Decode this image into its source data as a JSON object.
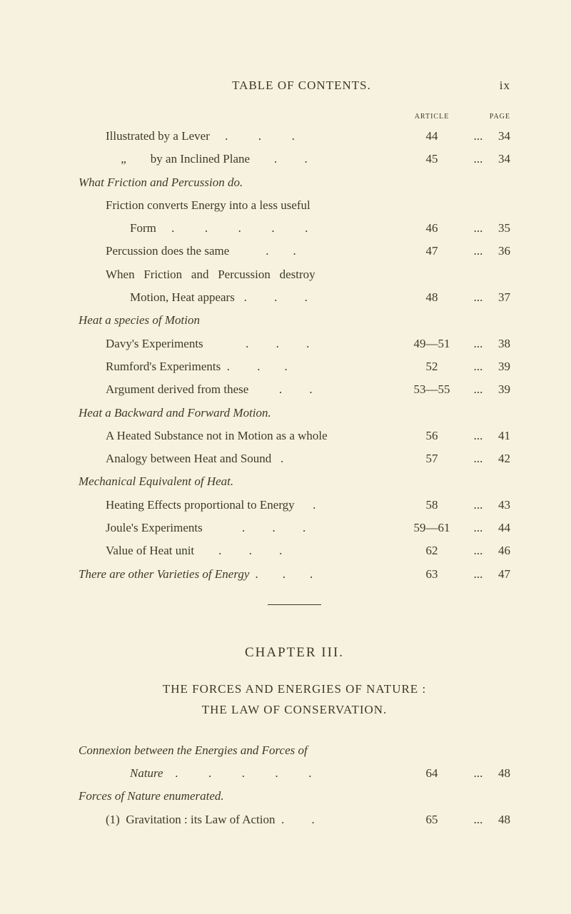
{
  "running_head": {
    "title": "TABLE OF CONTENTS.",
    "folio": "ix"
  },
  "col_headers": {
    "article": "ARTICLE",
    "page": "PAGE"
  },
  "entries_top": [
    {
      "label": "Illustrated by a Lever     .          .          .",
      "article": "44",
      "dots": "...",
      "page": "34",
      "indent": 1
    },
    {
      "label": "     „        by an Inclined Plane        .         .",
      "article": "45",
      "dots": "...",
      "page": "34",
      "indent": 1
    }
  ],
  "sec1": "What Friction and Percussion do.",
  "entries_sec1": [
    {
      "label": "Friction converts Energy into a less useful",
      "article": "",
      "dots": "",
      "page": "",
      "indent": 1
    },
    {
      "label": "Form     .          .          .          .          .",
      "article": "46",
      "dots": "...",
      "page": "35",
      "indent": 2
    },
    {
      "label": "Percussion does the same            .        .",
      "article": "47",
      "dots": "...",
      "page": "36",
      "indent": 1
    },
    {
      "label": "When   Friction   and   Percussion   destroy",
      "article": "",
      "dots": "",
      "page": "",
      "indent": 1
    },
    {
      "label": "Motion, Heat appears   .         .         .",
      "article": "48",
      "dots": "...",
      "page": "37",
      "indent": 2
    }
  ],
  "sec2": "Heat a species of Motion",
  "entries_sec2": [
    {
      "label": "Davy's Experiments              .         .         .",
      "article": "49—51",
      "dots": "...",
      "page": "38",
      "indent": 1
    },
    {
      "label": "Rumford's Experiments  .         .        .",
      "article": "52",
      "dots": "...",
      "page": "39",
      "indent": 1
    },
    {
      "label": "Argument derived from these          .         .",
      "article": "53—55",
      "dots": "...",
      "page": "39",
      "indent": 1
    }
  ],
  "sec3": "Heat a Backward and Forward Motion.",
  "entries_sec3": [
    {
      "label": "A Heated Substance not in Motion as a whole",
      "article": "56",
      "dots": "...",
      "page": "41",
      "indent": 1
    },
    {
      "label": "Analogy between Heat and Sound   .",
      "article": "57",
      "dots": "...",
      "page": "42",
      "indent": 1
    }
  ],
  "sec4": "Mechanical Equivalent of Heat.",
  "entries_sec4": [
    {
      "label": "Heating Effects proportional to Energy      .",
      "article": "58",
      "dots": "...",
      "page": "43",
      "indent": 1
    },
    {
      "label": "Joule's Experiments             .         .         .",
      "article": "59—61",
      "dots": "...",
      "page": "44",
      "indent": 1
    },
    {
      "label": "Value of Heat unit        .         .         .",
      "article": "62",
      "dots": "...",
      "page": "46",
      "indent": 1
    }
  ],
  "sec5": "There are other Varieties of Energy  .        .        .",
  "entries_sec5": [
    {
      "label": "",
      "article": "63",
      "dots": "...",
      "page": "47"
    }
  ],
  "chapter": {
    "title": "CHAPTER III.",
    "sub1": "THE FORCES AND ENERGIES OF NATURE :",
    "sub2": "THE LAW OF CONSERVATION."
  },
  "sec6": "Connexion  between  the  Energies  and  Forces  of",
  "entries_sec6": [
    {
      "label": "Nature    .          .          .          .          .",
      "article": "64",
      "dots": "...",
      "page": "48",
      "indent": 2
    }
  ],
  "sec7": "Forces of Nature enumerated.",
  "entries_sec7": [
    {
      "label": "(1)  Gravitation : its Law of Action  .         .",
      "article": "65",
      "dots": "...",
      "page": "48",
      "indent": 1
    }
  ]
}
